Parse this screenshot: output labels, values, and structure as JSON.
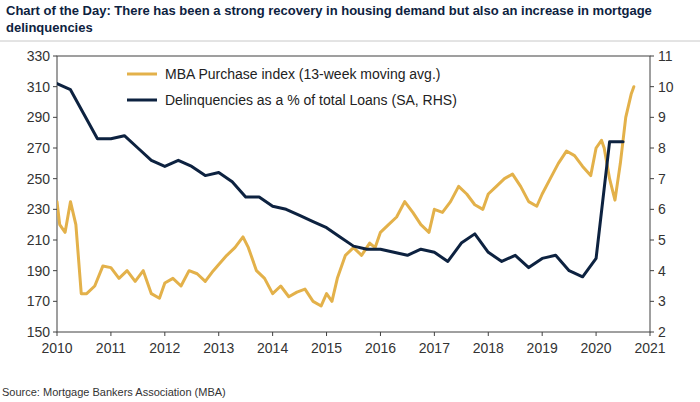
{
  "chart_data": {
    "type": "line",
    "title": "Chart of the Day: There has been a strong recovery in housing demand but also an increase in mortgage delinquencies",
    "source": "Source: Mortgage Bankers Association (MBA)",
    "xlim": [
      2010,
      2021
    ],
    "xticks": [
      2010,
      2011,
      2012,
      2013,
      2014,
      2015,
      2016,
      2017,
      2018,
      2019,
      2020,
      2021
    ],
    "ylim": [
      150,
      330
    ],
    "yticks": [
      150,
      170,
      190,
      210,
      230,
      250,
      270,
      290,
      310,
      330
    ],
    "y2lim": [
      2,
      11
    ],
    "y2ticks": [
      2,
      3,
      4,
      5,
      6,
      7,
      8,
      9,
      10,
      11
    ],
    "grid": false,
    "legend": "upper left",
    "series": [
      {
        "name": "MBA Purchase index (13-week moving avg.)",
        "color": "#e3b14a",
        "axis": "y",
        "x": [
          2010.0,
          2010.05,
          2010.15,
          2010.25,
          2010.35,
          2010.45,
          2010.55,
          2010.7,
          2010.85,
          2011.0,
          2011.15,
          2011.3,
          2011.45,
          2011.6,
          2011.75,
          2011.9,
          2012.0,
          2012.15,
          2012.3,
          2012.45,
          2012.6,
          2012.75,
          2012.9,
          2013.0,
          2013.15,
          2013.3,
          2013.45,
          2013.55,
          2013.7,
          2013.85,
          2014.0,
          2014.15,
          2014.3,
          2014.45,
          2014.6,
          2014.75,
          2014.9,
          2015.0,
          2015.1,
          2015.2,
          2015.35,
          2015.5,
          2015.65,
          2015.8,
          2015.9,
          2016.0,
          2016.15,
          2016.3,
          2016.45,
          2016.6,
          2016.75,
          2016.9,
          2017.0,
          2017.15,
          2017.3,
          2017.45,
          2017.6,
          2017.75,
          2017.9,
          2018.0,
          2018.15,
          2018.3,
          2018.45,
          2018.6,
          2018.75,
          2018.9,
          2019.0,
          2019.15,
          2019.3,
          2019.45,
          2019.6,
          2019.75,
          2019.9,
          2020.0,
          2020.1,
          2020.15,
          2020.25,
          2020.35,
          2020.45,
          2020.55,
          2020.65,
          2020.7
        ],
        "values": [
          235,
          220,
          215,
          235,
          220,
          175,
          175,
          180,
          193,
          192,
          185,
          190,
          183,
          190,
          175,
          172,
          182,
          185,
          180,
          190,
          188,
          183,
          190,
          194,
          200,
          205,
          212,
          205,
          190,
          185,
          175,
          180,
          173,
          176,
          178,
          170,
          167,
          175,
          170,
          185,
          200,
          205,
          200,
          208,
          205,
          215,
          220,
          225,
          235,
          228,
          220,
          215,
          230,
          228,
          235,
          245,
          240,
          233,
          230,
          240,
          245,
          250,
          253,
          245,
          235,
          232,
          240,
          250,
          260,
          268,
          265,
          258,
          252,
          270,
          275,
          270,
          250,
          236,
          260,
          290,
          305,
          310
        ]
      },
      {
        "name": "Delinquencies as a % of total Loans (SA, RHS)",
        "color": "#0d2240",
        "axis": "y2",
        "x": [
          2010.0,
          2010.25,
          2010.5,
          2010.75,
          2011.0,
          2011.25,
          2011.5,
          2011.75,
          2012.0,
          2012.25,
          2012.5,
          2012.75,
          2013.0,
          2013.25,
          2013.5,
          2013.75,
          2014.0,
          2014.25,
          2014.5,
          2014.75,
          2015.0,
          2015.25,
          2015.5,
          2015.75,
          2016.0,
          2016.25,
          2016.5,
          2016.75,
          2017.0,
          2017.25,
          2017.5,
          2017.75,
          2018.0,
          2018.25,
          2018.5,
          2018.75,
          2019.0,
          2019.25,
          2019.5,
          2019.75,
          2020.0,
          2020.25,
          2020.5
        ],
        "values": [
          10.1,
          9.9,
          9.1,
          8.3,
          8.3,
          8.4,
          8.0,
          7.6,
          7.4,
          7.6,
          7.4,
          7.1,
          7.2,
          6.9,
          6.4,
          6.4,
          6.1,
          6.0,
          5.8,
          5.6,
          5.4,
          5.1,
          4.8,
          4.7,
          4.7,
          4.6,
          4.5,
          4.7,
          4.6,
          4.3,
          4.9,
          5.2,
          4.6,
          4.3,
          4.5,
          4.1,
          4.4,
          4.5,
          4.0,
          3.8,
          4.4,
          8.2,
          8.2
        ]
      }
    ]
  }
}
